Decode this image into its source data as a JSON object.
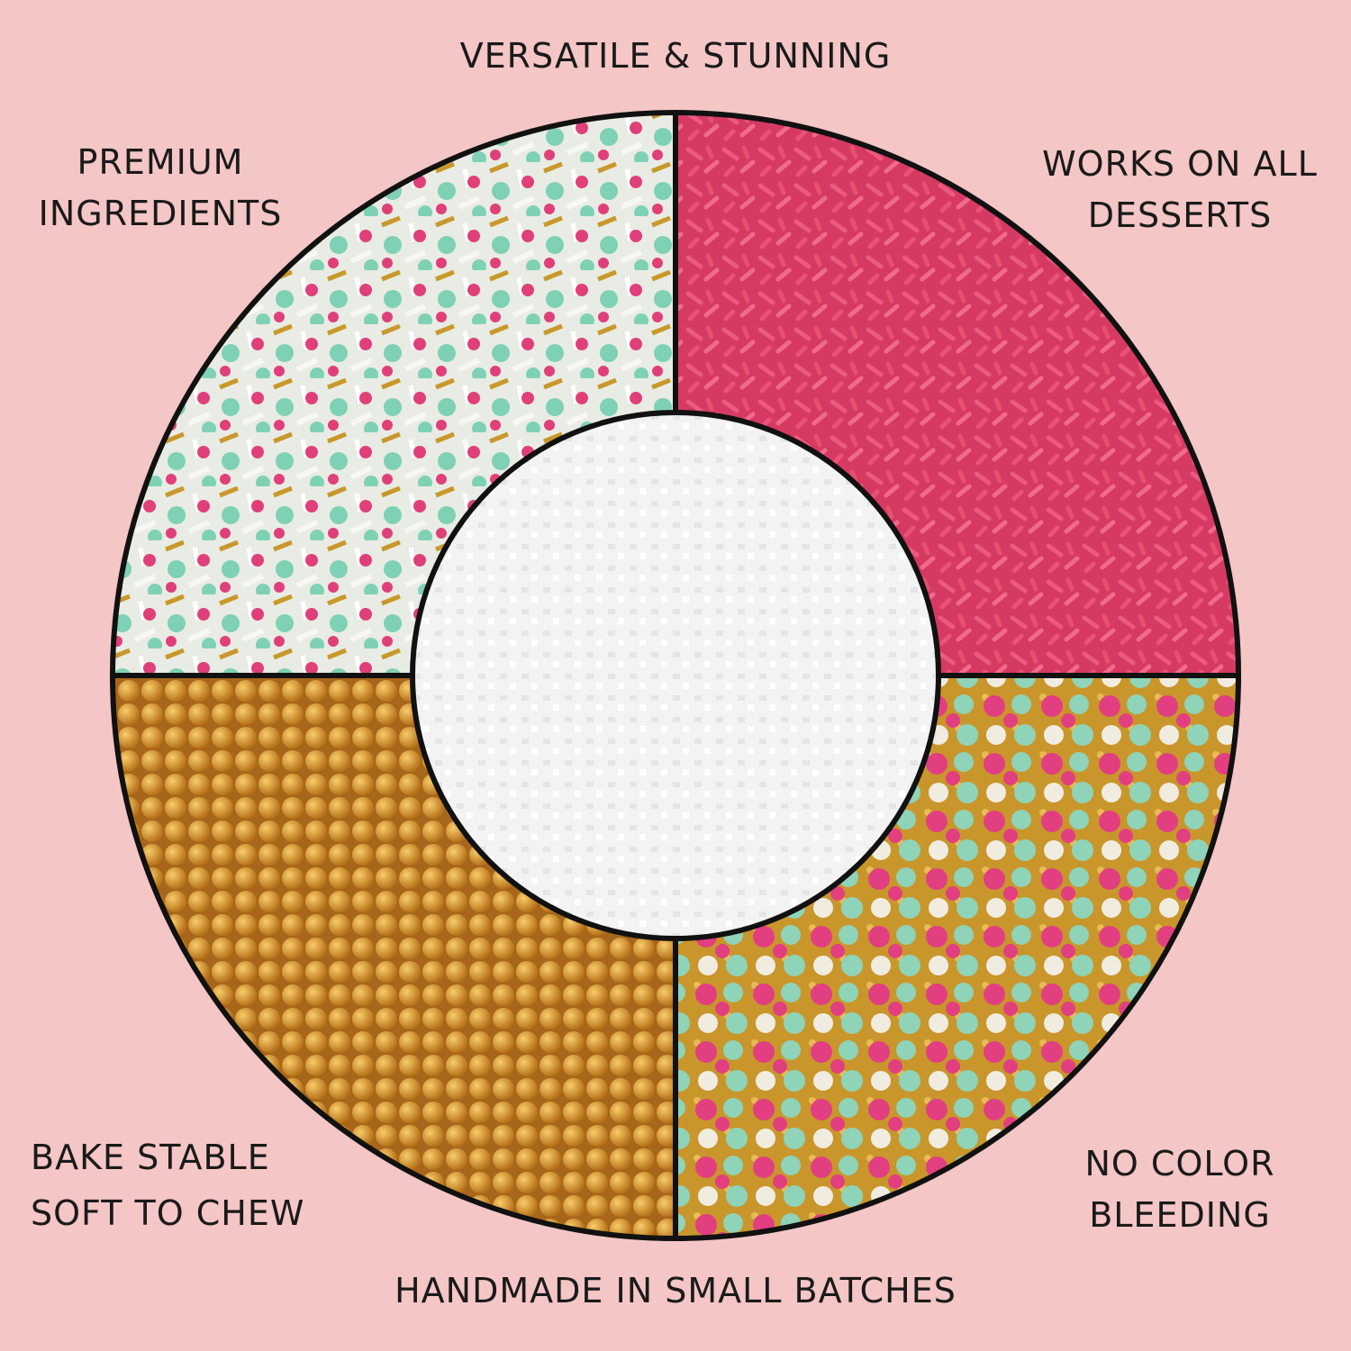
{
  "labels": {
    "top": "VERSATILE & STUNNING",
    "top_left": [
      "PREMIUM",
      "INGREDIENTS"
    ],
    "top_right": [
      "WORKS ON ALL",
      "DESSERTS"
    ],
    "bottom_left": [
      "BAKE STABLE",
      "SOFT TO CHEW"
    ],
    "bottom_right": [
      "NO COLOR",
      "BLEEDING"
    ],
    "bottom": "HANDMADE IN SMALL BATCHES"
  },
  "colors": {
    "background": "#f4c6c5",
    "outline": "#111111",
    "quadrant_top_left": [
      "#7fd1b5",
      "#e0407a",
      "#c9982a",
      "#f1f1ec"
    ],
    "quadrant_top_right": "#e2456d",
    "quadrant_bottom_left": "#d38f24",
    "quadrant_bottom_right": [
      "#e23f80",
      "#8fd3b8",
      "#f1ece0",
      "#c9962b"
    ],
    "center": "#f3f3f3"
  }
}
